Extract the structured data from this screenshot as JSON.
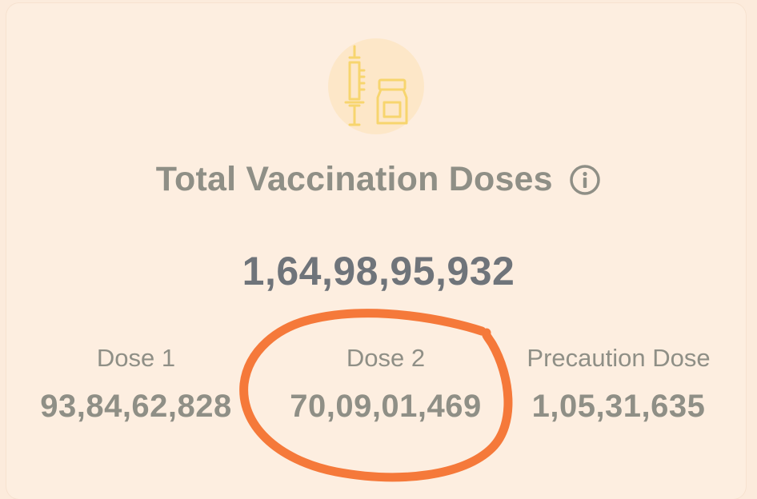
{
  "card": {
    "icon": "syringe-vial-icon",
    "title": "Total Vaccination Doses",
    "info_icon": "info-icon",
    "total": "1,64,98,95,932"
  },
  "stats": [
    {
      "label": "Dose 1",
      "value": "93,84,62,828"
    },
    {
      "label": "Dose 2",
      "value": "70,09,01,469"
    },
    {
      "label": "Precaution Dose",
      "value": "1,05,31,635"
    }
  ],
  "colors": {
    "background": "#fdeee0",
    "icon_bg": "#fde7c8",
    "icon_stroke": "#f7d56e",
    "text_muted": "#8f8f86",
    "total_text": "#6f747a",
    "annotation": "#f5793a"
  }
}
